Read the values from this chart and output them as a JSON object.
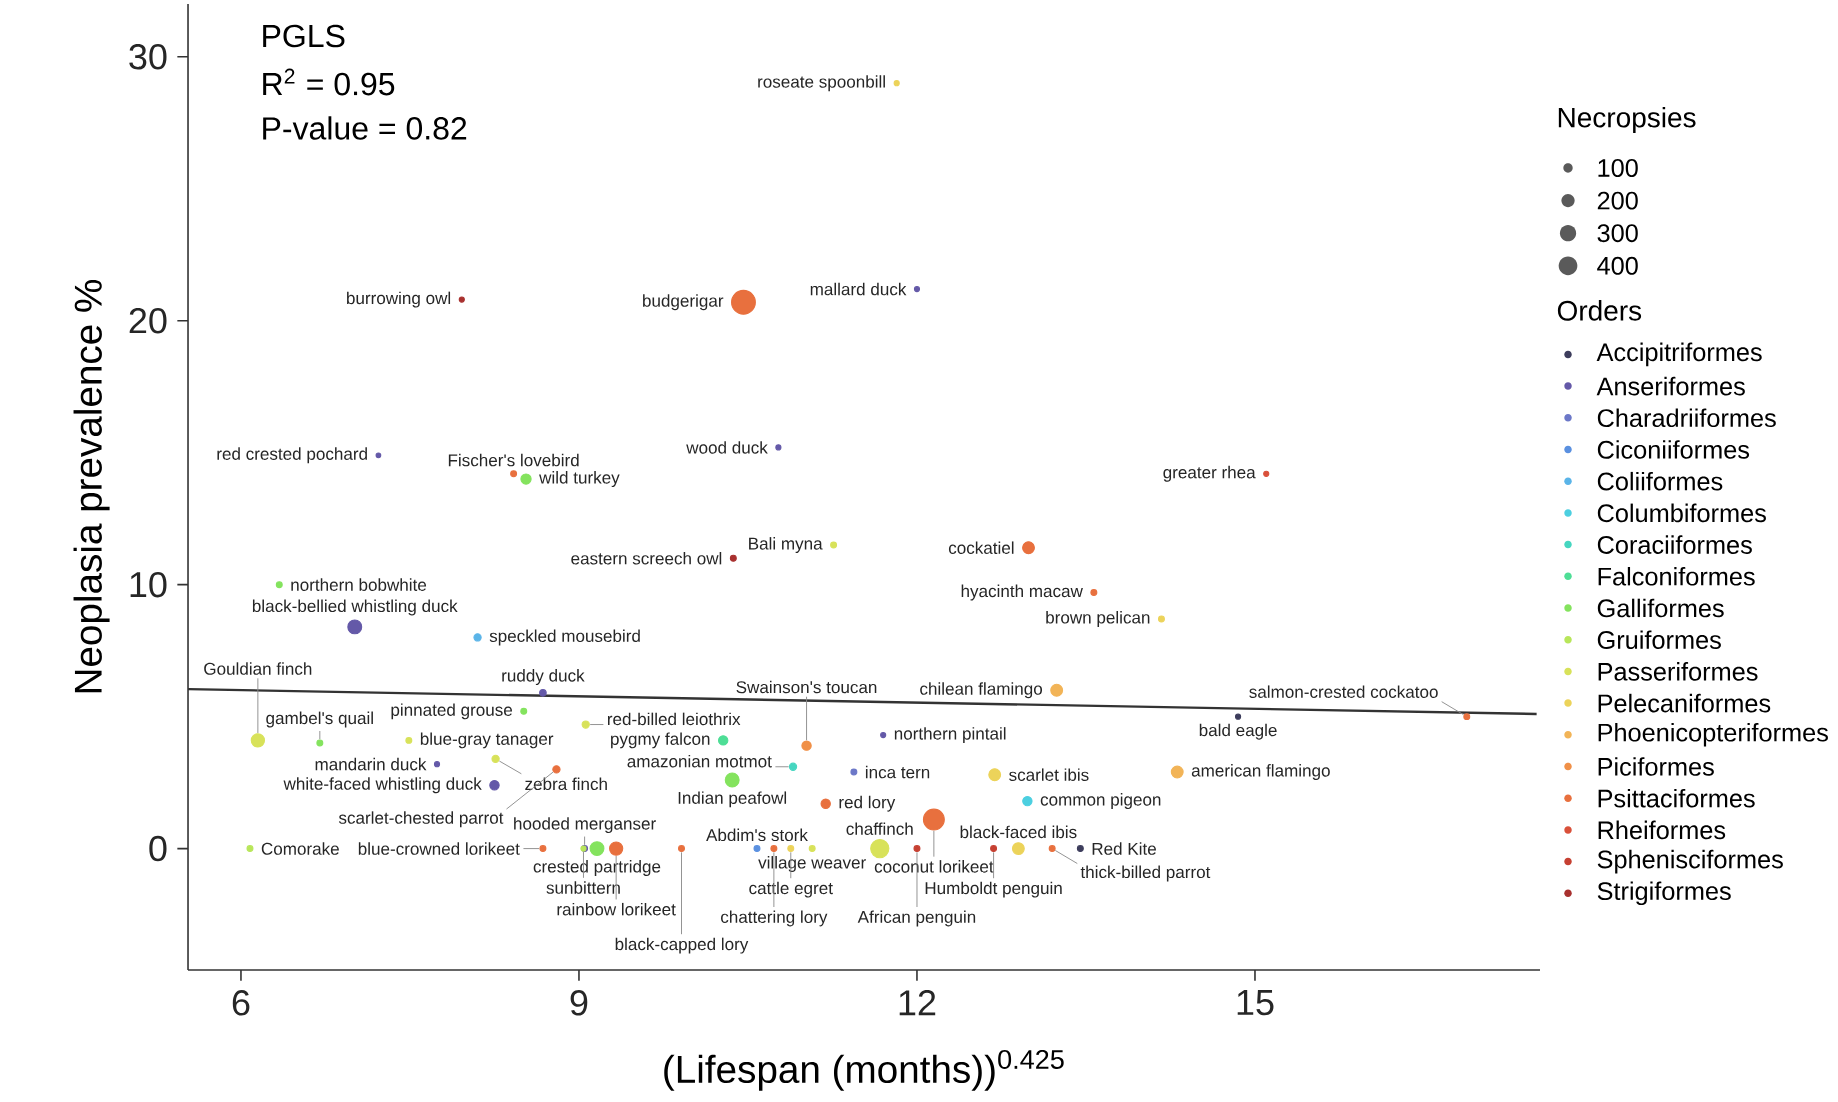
{
  "chart_data": {
    "type": "bubble",
    "xlabel": "(Lifespan (months))$^{0.425}$",
    "ylabel": "Neoplasia prevalence %",
    "xlim": [
      5.53,
      17.53
    ],
    "ylim": [
      -4.6,
      32
    ],
    "xticks": [
      6,
      9,
      12,
      15
    ],
    "yticks": [
      0,
      10,
      20,
      30
    ],
    "marker": "circle",
    "legend": "right",
    "legend_title": "Orders",
    "size_legend": [
      100,
      200,
      300,
      400
    ],
    "series": [
      {
        "name": "Accipitriformes",
        "color": "#3d3d5c",
        "x": [
          14.85,
          13.45
        ],
        "values": [
          5.0,
          0
        ],
        "sizes": [
          30,
          40
        ]
      },
      {
        "name": "Anseriformes",
        "color": "#6459a8",
        "x": [
          12.0,
          10.77,
          7.22,
          7.01,
          8.68,
          7.74,
          8.25,
          11.7,
          9.05
        ],
        "values": [
          21.2,
          15.2,
          14.9,
          8.4,
          5.9,
          3.2,
          2.4,
          4.3,
          0
        ],
        "sizes": [
          30,
          30,
          25,
          220,
          50,
          30,
          100,
          30,
          40
        ]
      },
      {
        "name": "Charadriiformes",
        "color": "#6c78c8",
        "x": [
          11.44
        ],
        "values": [
          2.9
        ],
        "sizes": [
          40
        ]
      },
      {
        "name": "Ciconiiformes",
        "color": "#5a90e0",
        "x": [
          10.58
        ],
        "values": [
          0
        ],
        "sizes": [
          40
        ]
      },
      {
        "name": "Coliiformes",
        "color": "#5ab4e8",
        "x": [
          8.1
        ],
        "values": [
          8.0
        ],
        "sizes": [
          60
        ]
      },
      {
        "name": "Columbiformes",
        "color": "#4ccfe0",
        "x": [
          12.98
        ],
        "values": [
          1.8
        ],
        "sizes": [
          100
        ]
      },
      {
        "name": "Coraciiformes",
        "color": "#46d6c0",
        "x": [
          10.9
        ],
        "values": [
          3.1
        ],
        "sizes": [
          60
        ]
      },
      {
        "name": "Falconiformes",
        "color": "#4ede96",
        "x": [
          10.28
        ],
        "values": [
          4.1
        ],
        "sizes": [
          100
        ]
      },
      {
        "name": "Galliformes",
        "color": "#84e35e",
        "x": [
          8.53,
          6.34,
          8.51,
          6.7,
          10.36,
          9.16
        ],
        "values": [
          14.0,
          10.0,
          5.2,
          4.0,
          2.6,
          0
        ],
        "sizes": [
          120,
          40,
          40,
          40,
          220,
          220
        ]
      },
      {
        "name": "Gruiformes",
        "color": "#b8e65a",
        "x": [
          6.08,
          9.04
        ],
        "values": [
          0,
          0
        ],
        "sizes": [
          40,
          30
        ]
      },
      {
        "name": "Passeriformes",
        "color": "#d8e25a",
        "x": [
          11.26,
          9.06,
          6.15,
          7.49,
          8.26,
          11.67,
          11.07
        ],
        "values": [
          11.5,
          4.7,
          4.1,
          4.1,
          3.4,
          0,
          0
        ],
        "sizes": [
          40,
          60,
          200,
          40,
          60,
          380,
          40
        ]
      },
      {
        "name": "Pelecaniformes",
        "color": "#ecd35a",
        "x": [
          11.82,
          14.17,
          12.69,
          10.88,
          12.9
        ],
        "values": [
          29.0,
          8.7,
          2.8,
          0,
          0
        ],
        "sizes": [
          30,
          40,
          160,
          40,
          160
        ]
      },
      {
        "name": "Phoenicopteriformes",
        "color": "#f2b457",
        "x": [
          13.24,
          14.31
        ],
        "values": [
          6.0,
          2.9
        ],
        "sizes": [
          160,
          160
        ]
      },
      {
        "name": "Piciformes",
        "color": "#f09048",
        "x": [
          11.02
        ],
        "values": [
          3.9
        ],
        "sizes": [
          100
        ]
      },
      {
        "name": "Psittaciformes",
        "color": "#e8703e",
        "x": [
          10.46,
          8.42,
          12.99,
          13.57,
          16.88,
          8.8,
          11.19,
          12.15,
          8.68,
          10.73,
          9.33,
          13.2,
          9.91
        ],
        "values": [
          20.7,
          14.2,
          11.4,
          9.7,
          5.0,
          3.0,
          1.7,
          1.1,
          0,
          0,
          0,
          0,
          0
        ],
        "sizes": [
          650,
          40,
          160,
          40,
          40,
          60,
          100,
          500,
          40,
          40,
          200,
          40,
          40
        ]
      },
      {
        "name": "Rheiformes",
        "color": "#d9503a",
        "x": [
          15.1
        ],
        "values": [
          14.2
        ],
        "sizes": [
          30
        ]
      },
      {
        "name": "Sphenisciformes",
        "color": "#c64032",
        "x": [
          12.68,
          12.0
        ],
        "values": [
          0,
          0
        ],
        "sizes": [
          40,
          40
        ]
      },
      {
        "name": "Strigiformes",
        "color": "#a8302e",
        "x": [
          7.96,
          10.37
        ],
        "values": [
          20.8,
          11.0
        ],
        "sizes": [
          30,
          40
        ]
      },
      {
        "type": "line",
        "marker": "none",
        "color": "#333333",
        "x": [
          5.53,
          17.5
        ],
        "values": [
          6.04,
          5.1
        ]
      }
    ],
    "annotations": [
      "PGLS",
      "R$^{2}$ = 0.95",
      "P-value = 0.82",
      "Necropsies",
      {
        "text": "bald eagle",
        "x": 14.85,
        "y": 5.0
      },
      {
        "text": "Red Kite",
        "x": 13.45,
        "y": 0
      },
      {
        "text": "mallard duck",
        "x": 12.0,
        "y": 21.2
      },
      {
        "text": "wood duck",
        "x": 10.77,
        "y": 15.2
      },
      {
        "text": "red crested pochard",
        "x": 7.22,
        "y": 14.9
      },
      {
        "text": "black-bellied whistling duck",
        "x": 7.01,
        "y": 8.4
      },
      {
        "text": "ruddy duck",
        "x": 8.68,
        "y": 5.9
      },
      {
        "text": "mandarin duck",
        "x": 7.74,
        "y": 3.2
      },
      {
        "text": "white-faced whistling duck",
        "x": 8.25,
        "y": 2.4
      },
      {
        "text": "northern pintail",
        "x": 11.7,
        "y": 4.3
      },
      {
        "text": "hooded merganser",
        "x": 9.05,
        "y": 0
      },
      {
        "text": "inca tern",
        "x": 11.44,
        "y": 2.9
      },
      {
        "text": "Abdim's stork",
        "x": 10.58,
        "y": 0
      },
      {
        "text": "speckled mousebird",
        "x": 8.1,
        "y": 8.0
      },
      {
        "text": "common pigeon",
        "x": 12.98,
        "y": 1.8
      },
      {
        "text": "amazonian motmot",
        "x": 10.9,
        "y": 3.1
      },
      {
        "text": "pygmy falcon",
        "x": 10.28,
        "y": 4.1
      },
      {
        "text": "wild turkey",
        "x": 8.53,
        "y": 14.0
      },
      {
        "text": "northern bobwhite",
        "x": 6.34,
        "y": 10.0
      },
      {
        "text": "pinnated grouse",
        "x": 8.51,
        "y": 5.2
      },
      {
        "text": "gambel's quail",
        "x": 6.7,
        "y": 4.0
      },
      {
        "text": "Indian peafowl",
        "x": 10.36,
        "y": 2.6
      },
      {
        "text": "crested partridge",
        "x": 9.16,
        "y": 0
      },
      {
        "text": "Comorake",
        "x": 6.08,
        "y": 0
      },
      {
        "text": "sunbittern",
        "x": 9.04,
        "y": 0
      },
      {
        "text": "Bali myna",
        "x": 11.26,
        "y": 11.5
      },
      {
        "text": "red-billed leiothrix",
        "x": 9.06,
        "y": 4.7
      },
      {
        "text": "Gouldian finch",
        "x": 6.15,
        "y": 4.1
      },
      {
        "text": "blue-gray tanager",
        "x": 7.49,
        "y": 4.1
      },
      {
        "text": "zebra finch",
        "x": 8.26,
        "y": 3.4
      },
      {
        "text": "chaffinch",
        "x": 11.67,
        "y": 0
      },
      {
        "text": "village weaver",
        "x": 11.07,
        "y": 0
      },
      {
        "text": "roseate spoonbill",
        "x": 11.82,
        "y": 29.0
      },
      {
        "text": "brown pelican",
        "x": 14.17,
        "y": 8.7
      },
      {
        "text": "scarlet ibis",
        "x": 12.69,
        "y": 2.8
      },
      {
        "text": "cattle egret",
        "x": 10.88,
        "y": 0
      },
      {
        "text": "black-faced ibis",
        "x": 12.9,
        "y": 0
      },
      {
        "text": "chilean flamingo",
        "x": 13.24,
        "y": 6.0
      },
      {
        "text": "american flamingo",
        "x": 14.31,
        "y": 2.9
      },
      {
        "text": "Swainson's toucan",
        "x": 11.02,
        "y": 3.9
      },
      {
        "text": "budgerigar",
        "x": 10.46,
        "y": 20.7
      },
      {
        "text": "Fischer's lovebird",
        "x": 8.42,
        "y": 14.2
      },
      {
        "text": "cockatiel",
        "x": 12.99,
        "y": 11.4
      },
      {
        "text": "hyacinth macaw",
        "x": 13.57,
        "y": 9.7
      },
      {
        "text": "salmon-crested cockatoo",
        "x": 16.88,
        "y": 5.0
      },
      {
        "text": "scarlet-chested parrot",
        "x": 8.8,
        "y": 3.0
      },
      {
        "text": "red lory",
        "x": 11.19,
        "y": 1.7
      },
      {
        "text": "coconut lorikeet",
        "x": 12.15,
        "y": 1.1
      },
      {
        "text": "blue-crowned lorikeet",
        "x": 8.68,
        "y": 0
      },
      {
        "text": "chattering lory",
        "x": 10.73,
        "y": 0
      },
      {
        "text": "rainbow lorikeet",
        "x": 9.33,
        "y": 0
      },
      {
        "text": "thick-billed parrot",
        "x": 13.2,
        "y": 0
      },
      {
        "text": "black-capped lory",
        "x": 9.91,
        "y": 0
      },
      {
        "text": "greater rhea",
        "x": 15.1,
        "y": 14.2
      },
      {
        "text": "Humboldt penguin",
        "x": 12.68,
        "y": 0
      },
      {
        "text": "African penguin",
        "x": 12.0,
        "y": 0
      },
      {
        "text": "burrowing owl",
        "x": 7.96,
        "y": 20.8
      },
      {
        "text": "eastern screech owl",
        "x": 10.37,
        "y": 11.0
      }
    ]
  }
}
